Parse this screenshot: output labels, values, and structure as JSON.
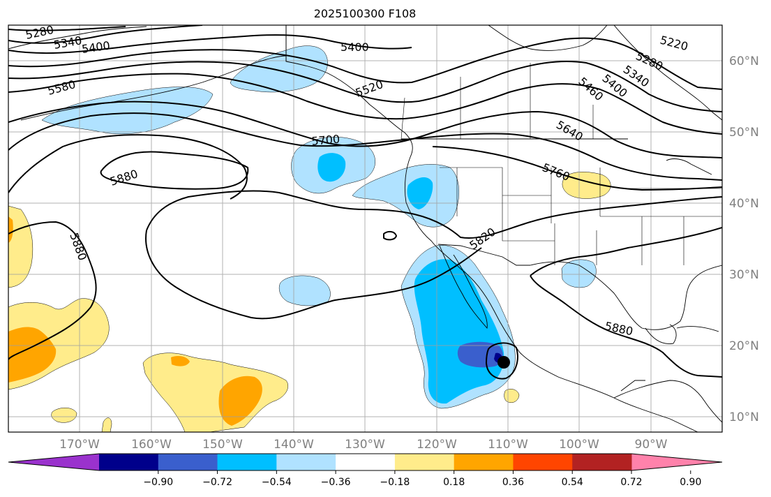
{
  "title": "2025100300 F108",
  "lat_labels": [
    "60°N",
    "50°N",
    "40°N",
    "30°N",
    "20°N",
    "10°N"
  ],
  "lon_labels": [
    "170°W",
    "160°W",
    "150°W",
    "140°W",
    "130°W",
    "120°W",
    "110°W",
    "100°W",
    "90°W"
  ],
  "colorbar": {
    "colors": [
      "#9a32cd",
      "#00008b",
      "#3a5fcd",
      "#00bfff",
      "#b0e2ff",
      "#ffffff",
      "#ffec8b",
      "#ffa500",
      "#ff4500",
      "#b22222",
      "#ff82ab"
    ],
    "tick_labels": [
      "−0.90",
      "−0.72",
      "−0.54",
      "−0.36",
      "−0.18",
      "0.18",
      "0.36",
      "0.54",
      "0.72",
      "0.90"
    ]
  },
  "contour_labels": [
    "5220",
    "5280",
    "5340",
    "5400",
    "5460",
    "5520",
    "5580",
    "5640",
    "5700",
    "5760",
    "5820",
    "5880"
  ],
  "label_instances": [
    {
      "key": "5280",
      "name": "contour-label-5280-nw"
    },
    {
      "key": "5340",
      "name": "contour-label-5340-nw"
    },
    {
      "key": "5400",
      "name": "contour-label-5400-nw"
    },
    {
      "key": "5400",
      "name": "contour-label-5400-north"
    },
    {
      "key": "5580",
      "name": "contour-label-5580-nw"
    },
    {
      "key": "5520",
      "name": "contour-label-5520"
    },
    {
      "key": "5220",
      "name": "contour-label-5220-ne"
    },
    {
      "key": "5280",
      "name": "contour-label-5280-ne"
    },
    {
      "key": "5340",
      "name": "contour-label-5340-ne"
    },
    {
      "key": "5400",
      "name": "contour-label-5400-ne"
    },
    {
      "key": "5460",
      "name": "contour-label-5460-ne"
    },
    {
      "key": "5640",
      "name": "contour-label-5640"
    },
    {
      "key": "5700",
      "name": "contour-label-5700"
    },
    {
      "key": "5760",
      "name": "contour-label-5760"
    },
    {
      "key": "5820",
      "name": "contour-label-5820"
    },
    {
      "key": "5880",
      "name": "contour-label-5880-central"
    },
    {
      "key": "5880",
      "name": "contour-label-5880-west"
    },
    {
      "key": "5880",
      "name": "contour-label-5880-east"
    }
  ],
  "storm_marker": "tropical-cyclone-marker",
  "colors": {
    "grid": "#a0a0a0",
    "contour": "#000000",
    "border": "#000000"
  }
}
